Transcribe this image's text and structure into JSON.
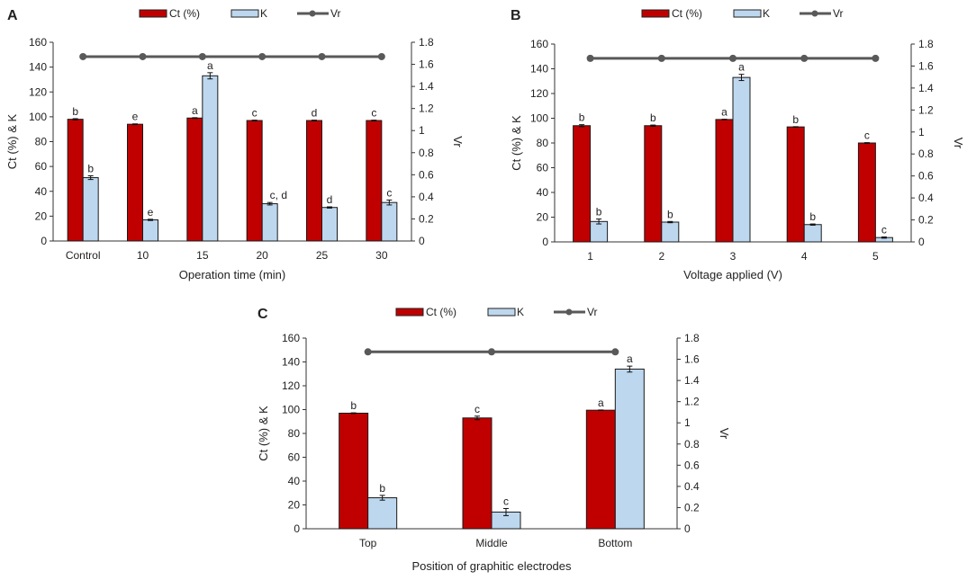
{
  "chart_data": [
    {
      "panel_label": "A",
      "type": "bar",
      "categories": [
        "Control",
        "10",
        "15",
        "20",
        "25",
        "30"
      ],
      "xlabel": "Operation time (min)",
      "ylabel": "Ct (%) & K",
      "y2label": "Vr",
      "ylim": [
        0,
        160
      ],
      "yticks": [
        0,
        20,
        40,
        60,
        80,
        100,
        120,
        140,
        160
      ],
      "y2lim": [
        0,
        1.8
      ],
      "y2ticks": [
        "0",
        "0.2",
        "0.4",
        "0.6",
        "0.8",
        "1",
        "1.2",
        "1.4",
        "1.6",
        "1.8"
      ],
      "legend": [
        "Ct (%)",
        "K",
        "Vr"
      ],
      "legend_position": "top",
      "series": [
        {
          "name": "Ct (%)",
          "color": "#c00000",
          "values": [
            98,
            94,
            99,
            97,
            97,
            97
          ],
          "errors": [
            0.5,
            0.3,
            0.3,
            0.3,
            0.3,
            0.3
          ],
          "letters": [
            "b",
            "e",
            "a",
            "c",
            "d",
            "c"
          ]
        },
        {
          "name": "K",
          "color": "#bdd7ee",
          "values": [
            51,
            17,
            133,
            30,
            27,
            31
          ],
          "errors": [
            1.5,
            0.5,
            2.5,
            1,
            0.5,
            2
          ],
          "letters": [
            "b",
            "e",
            "a",
            "c, d",
            "d",
            "c"
          ]
        },
        {
          "name": "Vr",
          "color": "#595959",
          "axis": "right",
          "values": [
            1.67,
            1.67,
            1.67,
            1.67,
            1.67,
            1.67
          ]
        }
      ]
    },
    {
      "panel_label": "B",
      "type": "bar",
      "categories": [
        "1",
        "2",
        "3",
        "4",
        "5"
      ],
      "xlabel": "Voltage applied (V)",
      "ylabel": "Ct (%) & K",
      "y2label": "Vr",
      "ylim": [
        0,
        160
      ],
      "yticks": [
        0,
        20,
        40,
        60,
        80,
        100,
        120,
        140,
        160
      ],
      "y2lim": [
        0,
        1.8
      ],
      "y2ticks": [
        "0",
        "0.2",
        "0.4",
        "0.6",
        "0.8",
        "1",
        "1.2",
        "1.4",
        "1.6",
        "1.8"
      ],
      "legend": [
        "Ct (%)",
        "K",
        "Vr"
      ],
      "legend_position": "top",
      "series": [
        {
          "name": "Ct (%)",
          "color": "#c00000",
          "values": [
            94,
            94,
            99,
            93,
            80
          ],
          "errors": [
            0.8,
            0.5,
            0.2,
            0.2,
            0.3
          ],
          "letters": [
            "b",
            "b",
            "a",
            "b",
            "c"
          ]
        },
        {
          "name": "K",
          "color": "#bdd7ee",
          "values": [
            16.5,
            16,
            133,
            14,
            3.5
          ],
          "errors": [
            2,
            0.5,
            2.5,
            0.5,
            0.5
          ],
          "letters": [
            "b",
            "b",
            "a",
            "b",
            "c"
          ]
        },
        {
          "name": "Vr",
          "color": "#595959",
          "axis": "right",
          "values": [
            1.67,
            1.67,
            1.67,
            1.67,
            1.67
          ]
        }
      ]
    },
    {
      "panel_label": "C",
      "type": "bar",
      "categories": [
        "Top",
        "Middle",
        "Bottom"
      ],
      "xlabel": "Position of graphitic electrodes",
      "ylabel": "Ct (%) & K",
      "y2label": "Vr",
      "ylim": [
        0,
        160
      ],
      "yticks": [
        0,
        20,
        40,
        60,
        80,
        100,
        120,
        140,
        160
      ],
      "y2lim": [
        0,
        1.8
      ],
      "y2ticks": [
        "0",
        "0.2",
        "0.4",
        "0.6",
        "0.8",
        "1",
        "1.2",
        "1.4",
        "1.6",
        "1.8"
      ],
      "legend": [
        "Ct (%)",
        "K",
        "Vr"
      ],
      "legend_position": "top",
      "series": [
        {
          "name": "Ct (%)",
          "color": "#c00000",
          "values": [
            97,
            93,
            99.5
          ],
          "errors": [
            0.3,
            1.5,
            0.2
          ],
          "letters": [
            "b",
            "c",
            "a"
          ]
        },
        {
          "name": "K",
          "color": "#bdd7ee",
          "values": [
            26,
            14,
            134
          ],
          "errors": [
            2,
            3,
            2.5
          ],
          "letters": [
            "b",
            "c",
            "a"
          ]
        },
        {
          "name": "Vr",
          "color": "#595959",
          "axis": "right",
          "values": [
            1.67,
            1.67,
            1.67
          ]
        }
      ]
    }
  ]
}
